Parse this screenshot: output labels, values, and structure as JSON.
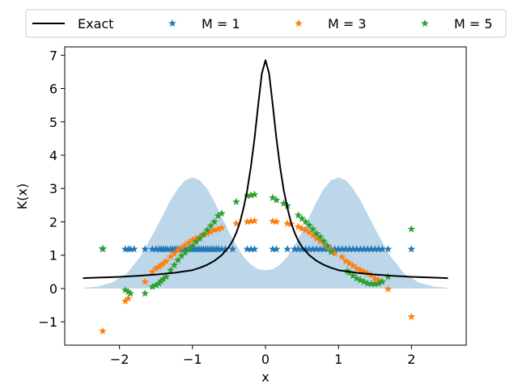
{
  "chart_data": {
    "type": "scatter",
    "xlabel": "x",
    "ylabel": "K(x)",
    "xlim": [
      -2.75,
      2.75
    ],
    "ylim": [
      -1.7,
      7.25
    ],
    "xticks": [
      -2,
      -1,
      0,
      1,
      2
    ],
    "yticks": [
      -1,
      0,
      1,
      2,
      3,
      4,
      5,
      6,
      7
    ],
    "xtick_labels": [
      "−2",
      "−1",
      "0",
      "1",
      "2"
    ],
    "ytick_labels": [
      "−1",
      "0",
      "1",
      "2",
      "3",
      "4",
      "5",
      "6",
      "7"
    ],
    "legend_placement": "top (above plot), 4 columns",
    "grid": false,
    "density_fill": {
      "color": "#bcd6ea",
      "x": [
        -2.5,
        -2.3,
        -2.1,
        -1.9,
        -1.7,
        -1.5,
        -1.3,
        -1.2,
        -1.1,
        -1.0,
        -0.9,
        -0.8,
        -0.7,
        -0.6,
        -0.5,
        -0.4,
        -0.3,
        -0.2,
        -0.1,
        0.0,
        0.1,
        0.2,
        0.3,
        0.4,
        0.5,
        0.6,
        0.7,
        0.8,
        0.9,
        1.0,
        1.1,
        1.2,
        1.3,
        1.5,
        1.7,
        1.9,
        2.1,
        2.3,
        2.5
      ],
      "y": [
        0.02,
        0.06,
        0.18,
        0.45,
        1.0,
        1.8,
        2.65,
        3.0,
        3.25,
        3.33,
        3.25,
        3.0,
        2.6,
        2.15,
        1.7,
        1.3,
        0.95,
        0.72,
        0.58,
        0.55,
        0.58,
        0.72,
        0.95,
        1.3,
        1.7,
        2.15,
        2.6,
        3.0,
        3.25,
        3.33,
        3.25,
        3.0,
        2.65,
        1.8,
        1.0,
        0.45,
        0.18,
        0.06,
        0.02
      ]
    },
    "series": [
      {
        "name": "Exact",
        "kind": "line",
        "color": "#000000",
        "x": [
          -2.5,
          -2.25,
          -2.0,
          -1.75,
          -1.5,
          -1.25,
          -1.0,
          -0.9,
          -0.8,
          -0.7,
          -0.6,
          -0.5,
          -0.45,
          -0.4,
          -0.35,
          -0.3,
          -0.25,
          -0.2,
          -0.15,
          -0.1,
          -0.05,
          0.0,
          0.05,
          0.1,
          0.15,
          0.2,
          0.25,
          0.3,
          0.35,
          0.4,
          0.45,
          0.5,
          0.6,
          0.7,
          0.8,
          0.9,
          1.0,
          1.25,
          1.5,
          1.75,
          2.0,
          2.25,
          2.5
        ],
        "y": [
          0.31,
          0.33,
          0.35,
          0.38,
          0.42,
          0.47,
          0.55,
          0.62,
          0.71,
          0.83,
          1.0,
          1.25,
          1.43,
          1.67,
          1.98,
          2.42,
          2.95,
          3.65,
          4.5,
          5.5,
          6.45,
          6.85,
          6.45,
          5.5,
          4.5,
          3.65,
          2.95,
          2.42,
          1.98,
          1.67,
          1.43,
          1.25,
          1.0,
          0.83,
          0.71,
          0.62,
          0.55,
          0.47,
          0.42,
          0.38,
          0.35,
          0.33,
          0.31
        ]
      },
      {
        "name": "M = 1",
        "kind": "scatter",
        "color": "#1f77b4",
        "x": [
          -2.23,
          -1.92,
          -1.88,
          -1.85,
          -1.8,
          -1.65,
          -1.55,
          -1.5,
          -1.46,
          -1.43,
          -1.4,
          -1.37,
          -1.34,
          -1.3,
          -1.27,
          -1.24,
          -1.21,
          -1.18,
          -1.15,
          -1.12,
          -1.09,
          -1.06,
          -1.03,
          -1.0,
          -0.97,
          -0.94,
          -0.91,
          -0.88,
          -0.85,
          -0.82,
          -0.79,
          -0.76,
          -0.73,
          -0.7,
          -0.67,
          -0.64,
          -0.6,
          -0.55,
          -0.45,
          -0.25,
          -0.2,
          -0.15,
          0.1,
          0.15,
          0.3,
          0.4,
          0.45,
          0.5,
          0.55,
          0.6,
          0.65,
          0.7,
          0.75,
          0.8,
          0.85,
          0.9,
          0.95,
          1.0,
          1.05,
          1.1,
          1.15,
          1.2,
          1.25,
          1.3,
          1.35,
          1.4,
          1.45,
          1.5,
          1.55,
          1.6,
          1.68,
          2.0
        ],
        "y": [
          1.18,
          1.18,
          1.18,
          1.18,
          1.18,
          1.18,
          1.18,
          1.18,
          1.18,
          1.18,
          1.18,
          1.18,
          1.18,
          1.18,
          1.18,
          1.18,
          1.18,
          1.18,
          1.18,
          1.18,
          1.18,
          1.18,
          1.18,
          1.18,
          1.18,
          1.18,
          1.18,
          1.18,
          1.18,
          1.18,
          1.18,
          1.18,
          1.18,
          1.18,
          1.18,
          1.18,
          1.18,
          1.18,
          1.18,
          1.18,
          1.18,
          1.18,
          1.18,
          1.18,
          1.18,
          1.18,
          1.18,
          1.18,
          1.18,
          1.18,
          1.18,
          1.18,
          1.18,
          1.18,
          1.18,
          1.18,
          1.18,
          1.18,
          1.18,
          1.18,
          1.18,
          1.18,
          1.18,
          1.18,
          1.18,
          1.18,
          1.18,
          1.18,
          1.18,
          1.18,
          1.18,
          1.18
        ]
      },
      {
        "name": "M = 3",
        "kind": "scatter",
        "color": "#ff7f0e",
        "x": [
          -2.23,
          -1.92,
          -1.88,
          -1.65,
          -1.55,
          -1.5,
          -1.46,
          -1.43,
          -1.4,
          -1.36,
          -1.3,
          -1.25,
          -1.2,
          -1.15,
          -1.1,
          -1.05,
          -1.0,
          -0.95,
          -0.9,
          -0.85,
          -0.8,
          -0.75,
          -0.7,
          -0.65,
          -0.6,
          -0.4,
          -0.25,
          -0.2,
          -0.15,
          0.1,
          0.15,
          0.3,
          0.35,
          0.45,
          0.5,
          0.55,
          0.6,
          0.65,
          0.7,
          0.75,
          0.8,
          0.85,
          0.9,
          0.95,
          1.05,
          1.1,
          1.15,
          1.2,
          1.25,
          1.3,
          1.35,
          1.4,
          1.45,
          1.5,
          1.55,
          1.6,
          1.68,
          2.0
        ],
        "y": [
          -1.28,
          -0.38,
          -0.3,
          0.2,
          0.5,
          0.6,
          0.65,
          0.7,
          0.75,
          0.82,
          0.95,
          1.05,
          1.15,
          1.22,
          1.3,
          1.38,
          1.45,
          1.5,
          1.55,
          1.6,
          1.65,
          1.7,
          1.75,
          1.78,
          1.82,
          1.95,
          2.0,
          2.02,
          2.03,
          2.02,
          2.0,
          1.95,
          1.93,
          1.85,
          1.8,
          1.75,
          1.68,
          1.6,
          1.5,
          1.42,
          1.35,
          1.25,
          1.15,
          1.05,
          0.95,
          0.82,
          0.75,
          0.68,
          0.6,
          0.55,
          0.5,
          0.45,
          0.4,
          0.3,
          0.25,
          0.2,
          -0.02,
          -0.85
        ]
      },
      {
        "name": "M = 5",
        "kind": "scatter",
        "color": "#2ca02c",
        "x": [
          -2.23,
          -1.92,
          -1.88,
          -1.85,
          -1.65,
          -1.55,
          -1.5,
          -1.46,
          -1.43,
          -1.4,
          -1.36,
          -1.3,
          -1.25,
          -1.2,
          -1.15,
          -1.1,
          -1.05,
          -1.0,
          -0.95,
          -0.9,
          -0.85,
          -0.8,
          -0.75,
          -0.7,
          -0.65,
          -0.6,
          -0.4,
          -0.25,
          -0.2,
          -0.15,
          0.1,
          0.15,
          0.25,
          0.3,
          0.45,
          0.5,
          0.55,
          0.6,
          0.65,
          0.7,
          0.75,
          0.8,
          0.85,
          0.9,
          1.12,
          1.15,
          1.2,
          1.25,
          1.3,
          1.35,
          1.4,
          1.45,
          1.5,
          1.55,
          1.6,
          1.68,
          2.0
        ],
        "y": [
          1.2,
          -0.05,
          -0.1,
          -0.15,
          -0.15,
          0.05,
          0.1,
          0.15,
          0.22,
          0.28,
          0.35,
          0.55,
          0.7,
          0.85,
          0.98,
          1.08,
          1.18,
          1.28,
          1.4,
          1.5,
          1.62,
          1.75,
          1.88,
          2.0,
          2.18,
          2.25,
          2.6,
          2.78,
          2.8,
          2.82,
          2.72,
          2.65,
          2.55,
          2.48,
          2.2,
          2.1,
          2.0,
          1.9,
          1.78,
          1.65,
          1.55,
          1.42,
          1.28,
          1.1,
          0.52,
          0.48,
          0.38,
          0.3,
          0.25,
          0.2,
          0.15,
          0.14,
          0.13,
          0.15,
          0.2,
          0.35,
          1.78
        ]
      }
    ]
  }
}
